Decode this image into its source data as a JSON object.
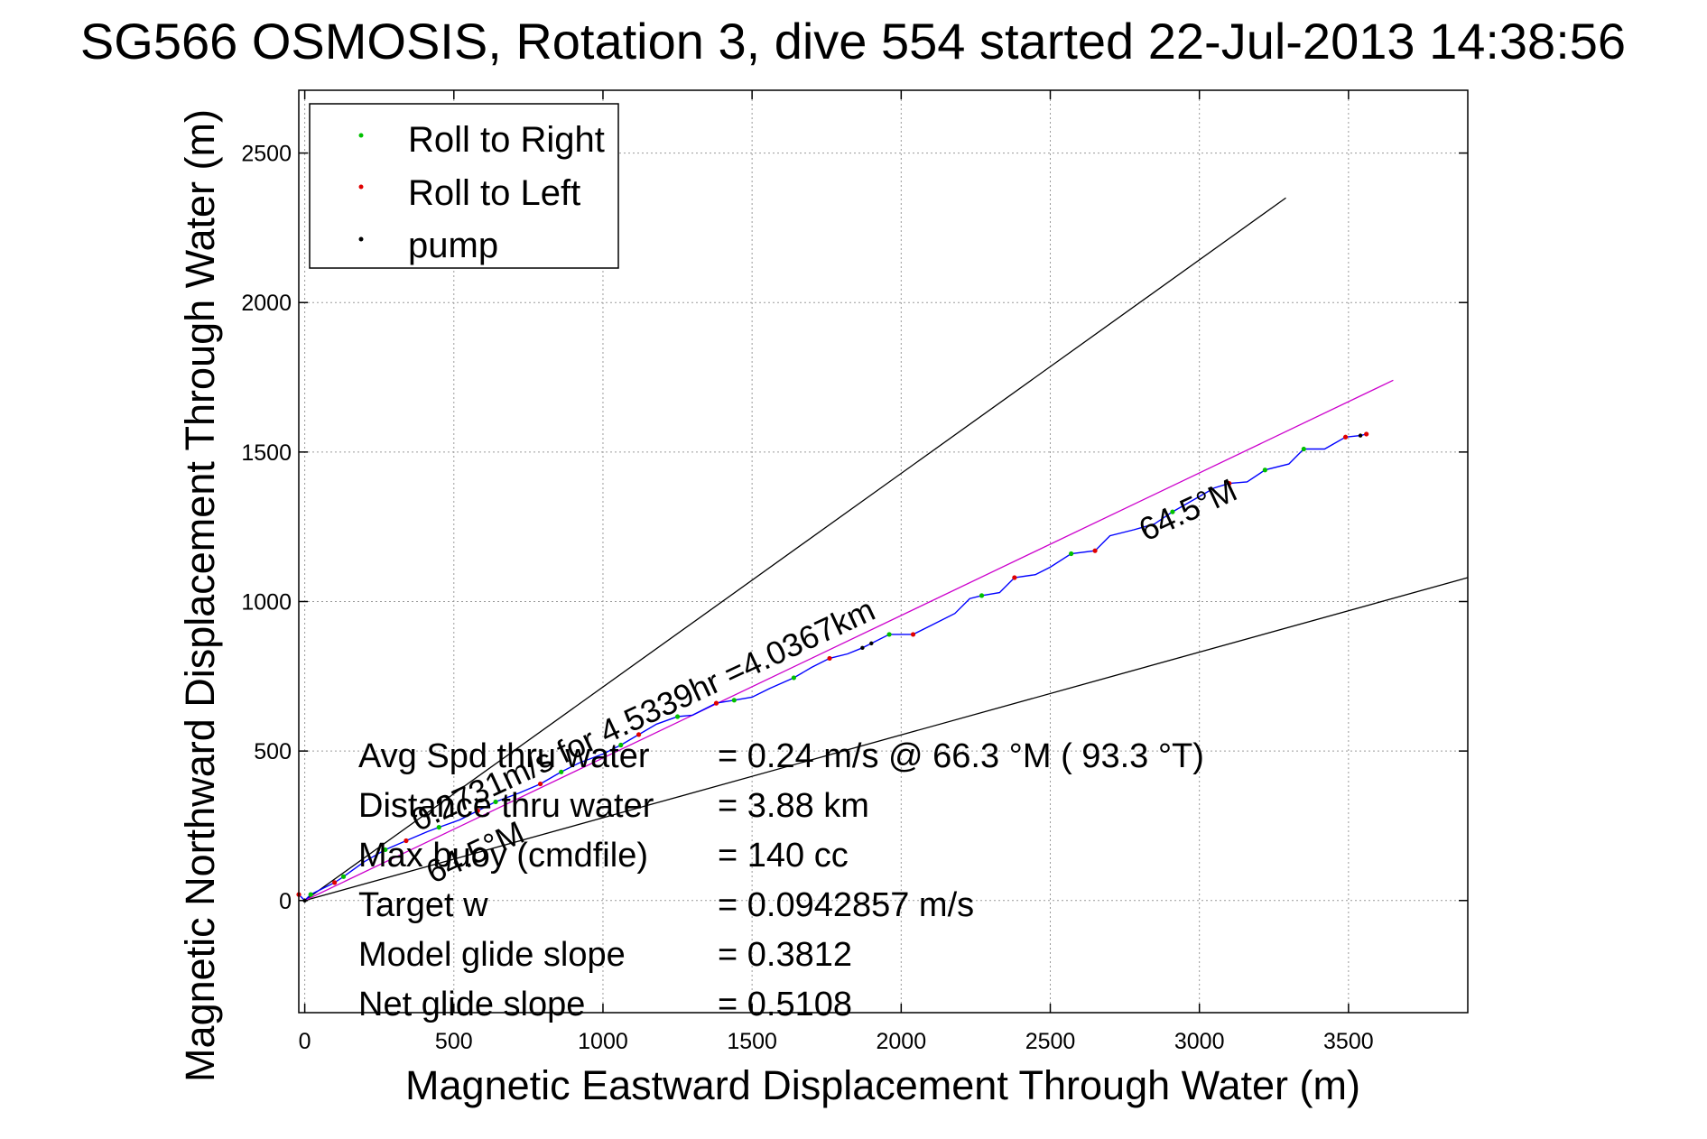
{
  "chart_data": {
    "type": "line",
    "title": "SG566 OSMOSIS, Rotation 3, dive 554 started 22-Jul-2013 14:38:56",
    "xlabel": "Magnetic Eastward Displacement Through Water (m)",
    "ylabel": "Magnetic Northward Displacement Through Water (m)",
    "xlim": [
      -20,
      3900
    ],
    "ylim": [
      -375,
      2710
    ],
    "xticks": [
      0,
      500,
      1000,
      1500,
      2000,
      2500,
      3000,
      3500
    ],
    "yticks": [
      0,
      500,
      1000,
      1500,
      2000,
      2500
    ],
    "grid": true,
    "legend": {
      "placement": "top-left",
      "entries": [
        {
          "label": "Roll to Right",
          "color": "#00c000"
        },
        {
          "label": "Roll to Left",
          "color": "#e00000"
        },
        {
          "label": "pump",
          "color": "#000000"
        }
      ]
    },
    "reference_lines": [
      {
        "x": [
          0,
          3290
        ],
        "y": [
          0,
          2350
        ],
        "color": "#000000"
      },
      {
        "x": [
          0,
          3900
        ],
        "y": [
          0,
          1080
        ],
        "color": "#000000"
      },
      {
        "x": [
          0,
          3650
        ],
        "y": [
          0,
          1740
        ],
        "color": "#cc00cc"
      }
    ],
    "track": {
      "color": "#0000ff",
      "x": [
        -20,
        0,
        20,
        100,
        130,
        200,
        270,
        340,
        410,
        450,
        520,
        580,
        640,
        720,
        790,
        860,
        920,
        1000,
        1060,
        1120,
        1180,
        1250,
        1300,
        1380,
        1440,
        1500,
        1560,
        1640,
        1700,
        1760,
        1820,
        1870,
        1900,
        1960,
        2040,
        2100,
        2180,
        2230,
        2270,
        2330,
        2380,
        2450,
        2500,
        2570,
        2650,
        2700,
        2780,
        2850,
        2910,
        2980,
        3050,
        3100,
        3160,
        3220,
        3300,
        3350,
        3420,
        3490,
        3540,
        3560
      ],
      "y": [
        20,
        0,
        20,
        60,
        80,
        130,
        170,
        200,
        230,
        245,
        270,
        300,
        330,
        360,
        390,
        430,
        460,
        490,
        520,
        555,
        590,
        615,
        620,
        660,
        670,
        680,
        710,
        745,
        780,
        810,
        825,
        845,
        860,
        890,
        890,
        920,
        960,
        1010,
        1020,
        1030,
        1080,
        1090,
        1115,
        1160,
        1170,
        1220,
        1240,
        1260,
        1300,
        1340,
        1380,
        1395,
        1400,
        1440,
        1460,
        1510,
        1510,
        1550,
        1555,
        1560
      ]
    },
    "roll_right_points": {
      "x": [
        20,
        130,
        270,
        450,
        640,
        860,
        1060,
        1250,
        1440,
        1640,
        1960,
        2270,
        2570,
        2910,
        3220,
        3350
      ],
      "y": [
        20,
        80,
        170,
        245,
        330,
        430,
        520,
        615,
        670,
        745,
        890,
        1020,
        1160,
        1300,
        1440,
        1510
      ]
    },
    "roll_left_points": {
      "x": [
        -20,
        100,
        340,
        580,
        790,
        1120,
        1380,
        1760,
        2040,
        2380,
        2650,
        3100,
        3490,
        3560
      ],
      "y": [
        20,
        60,
        200,
        300,
        390,
        555,
        660,
        810,
        890,
        1080,
        1170,
        1395,
        1550,
        1560
      ]
    },
    "pump_points": {
      "x": [
        0,
        1870,
        1900,
        3540
      ],
      "y": [
        0,
        845,
        860,
        1555
      ]
    },
    "annotations": [
      {
        "text": "64.5°M",
        "x": 2820,
        "y": 1200,
        "angle": -25
      },
      {
        "text": "64.5°M",
        "x": 430,
        "y": 55,
        "angle": -25
      },
      {
        "text": "0.2731m/s for 4.5339hr =4.0367km",
        "x": 380,
        "y": 230,
        "angle": -25
      }
    ],
    "stats": [
      {
        "label": "Avg Spd thru water",
        "value": "=  0.24 m/s @  66.3 °M ( 93.3 °T)"
      },
      {
        "label": "Distance thru water",
        "value": "=  3.88 km"
      },
      {
        "label": "Max buoy (cmdfile)",
        "value": "= 140 cc"
      },
      {
        "label": "Target w",
        "value": "= 0.0942857 m/s"
      },
      {
        "label": "Model glide slope",
        "value": "= 0.3812"
      },
      {
        "label": "Net glide slope",
        "value": "= 0.5108"
      }
    ]
  }
}
